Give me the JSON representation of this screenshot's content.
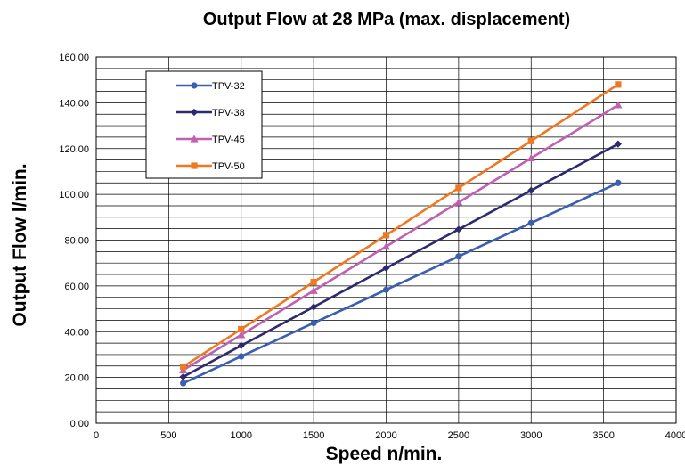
{
  "chart_data": {
    "type": "line",
    "title": "Output Flow at  28 MPa (max. displacement)",
    "xlabel": "Speed n/min.",
    "ylabel": "Output Flow l/min.",
    "xlim": [
      0,
      4000
    ],
    "ylim": [
      0,
      160
    ],
    "x_ticks": [
      0,
      500,
      1000,
      1500,
      2000,
      2500,
      3000,
      3500,
      4000
    ],
    "x_tick_labels": [
      "0",
      "500",
      "1000",
      "1500",
      "2000",
      "2500",
      "3000",
      "3500",
      "4000"
    ],
    "y_ticks": [
      0,
      20,
      40,
      60,
      80,
      100,
      120,
      140,
      160
    ],
    "y_tick_labels": [
      "0,00",
      "20,00",
      "40,00",
      "60,00",
      "80,00",
      "100,00",
      "120,00",
      "140,00",
      "160,00"
    ],
    "grid": true,
    "legend_position": "top-left",
    "x": [
      600,
      1000,
      1500,
      2000,
      2500,
      3000,
      3600
    ],
    "series": [
      {
        "name": "TPV-32",
        "color": "#3a5fae",
        "marker": "circle",
        "values": [
          17.5,
          29.2,
          43.8,
          58.3,
          72.9,
          87.5,
          105.0
        ]
      },
      {
        "name": "TPV-38",
        "color": "#2e2a6e",
        "marker": "diamond",
        "values": [
          20.3,
          33.9,
          50.8,
          67.8,
          84.7,
          101.7,
          122.0
        ]
      },
      {
        "name": "TPV-45",
        "color": "#c060b0",
        "marker": "triangle",
        "values": [
          23.2,
          38.6,
          57.9,
          77.2,
          96.5,
          115.8,
          139.0
        ]
      },
      {
        "name": "TPV-50",
        "color": "#f07820",
        "marker": "square",
        "values": [
          24.7,
          41.1,
          61.7,
          82.2,
          102.8,
          123.3,
          148.0
        ]
      }
    ]
  }
}
